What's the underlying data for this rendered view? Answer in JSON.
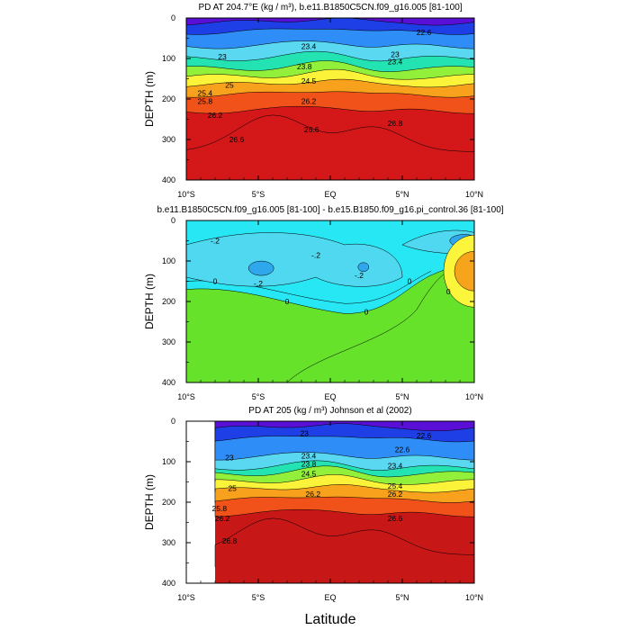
{
  "page": {
    "xlabel": "Latitude"
  },
  "chart_data": [
    {
      "type": "contour",
      "title": "PD AT 204.7°E (kg / m³), b.e11.B1850C5CN.f09_g16.005 [81-100]",
      "ylabel": "DEPTH (m)",
      "x_ticks": [
        "10°S",
        "5°S",
        "EQ",
        "5°N",
        "10°N"
      ],
      "y_ticks": [
        "0",
        "100",
        "200",
        "300",
        "400"
      ],
      "xlim": [
        -10,
        10
      ],
      "ylim": [
        0,
        400
      ],
      "levels": [
        {
          "value": 22.6,
          "color": "#5a0fd6",
          "depth": 12
        },
        {
          "value": 23.0,
          "color": "#1f3fe6",
          "depth": 35
        },
        {
          "value": 23.4,
          "color": "#2f8df7",
          "depth": 70
        },
        {
          "value": 23.8,
          "color": "#5ad8f2",
          "depth": 100
        },
        {
          "value": 24.5,
          "color": "#23e3b2",
          "depth": 125
        },
        {
          "value": 25.0,
          "color": "#92f03a",
          "depth": 145
        },
        {
          "value": 25.4,
          "color": "#fbf33a",
          "depth": 165
        },
        {
          "value": 25.8,
          "color": "#f7a11c",
          "depth": 190
        },
        {
          "value": 26.2,
          "color": "#f1521a",
          "depth": 230
        },
        {
          "value": 26.6,
          "color": "#d4181a",
          "depth": 400
        }
      ],
      "contour_labels": [
        {
          "text": "22.6",
          "lat": 6.5,
          "depth": 35
        },
        {
          "text": "23.4",
          "lat": -1.5,
          "depth": 70
        },
        {
          "text": "23",
          "lat": -7.5,
          "depth": 95
        },
        {
          "text": "23",
          "lat": 4.5,
          "depth": 90
        },
        {
          "text": "23.4",
          "lat": 4.5,
          "depth": 108
        },
        {
          "text": "23.8",
          "lat": -1.8,
          "depth": 120
        },
        {
          "text": "24.5",
          "lat": -1.5,
          "depth": 155
        },
        {
          "text": "25",
          "lat": -7,
          "depth": 165
        },
        {
          "text": "25.4",
          "lat": -8.7,
          "depth": 185
        },
        {
          "text": "25.8",
          "lat": -8.7,
          "depth": 205
        },
        {
          "text": "26.2",
          "lat": -8,
          "depth": 240
        },
        {
          "text": "26.6",
          "lat": -6.5,
          "depth": 300
        },
        {
          "text": "26.2",
          "lat": -1.5,
          "depth": 205
        },
        {
          "text": "26.8",
          "lat": 4.5,
          "depth": 260
        },
        {
          "text": "26.6",
          "lat": -1.3,
          "depth": 275
        }
      ]
    },
    {
      "type": "contour",
      "title": "b.e11.B1850C5CN.f09_g16.005 [81-100] - b.e15.B1850.f09_g16.pi_control.36 [81-100]",
      "ylabel": "DEPTH (m)",
      "x_ticks": [
        "10°S",
        "5°S",
        "EQ",
        "5°N",
        "10°N"
      ],
      "y_ticks": [
        "0",
        "100",
        "200",
        "300",
        "400"
      ],
      "xlim": [
        -10,
        10
      ],
      "ylim": [
        0,
        400
      ],
      "levels": [
        {
          "value": -0.4,
          "color": "#2fa7ec"
        },
        {
          "value": -0.2,
          "color": "#4fd8f0"
        },
        {
          "value": 0.0,
          "color": "#28e7f5"
        },
        {
          "value": 0.1,
          "color": "#2de0a8"
        },
        {
          "value": 0.2,
          "color": "#67e22a"
        },
        {
          "value": 0.4,
          "color": "#fbf53b"
        },
        {
          "value": 0.6,
          "color": "#f7a41d"
        }
      ],
      "contour_labels": [
        {
          "text": "-.2",
          "lat": -8,
          "depth": 50
        },
        {
          "text": "-.2",
          "lat": -1,
          "depth": 85
        },
        {
          "text": "-.2",
          "lat": -5,
          "depth": 155
        },
        {
          "text": "-.2",
          "lat": 2,
          "depth": 135
        },
        {
          "text": "0",
          "lat": 5.5,
          "depth": 150
        },
        {
          "text": "0",
          "lat": -8,
          "depth": 150
        },
        {
          "text": "0",
          "lat": -3,
          "depth": 200
        },
        {
          "text": "0",
          "lat": 2.5,
          "depth": 225
        },
        {
          "text": "0",
          "lat": 8.2,
          "depth": 175
        }
      ]
    },
    {
      "type": "contour",
      "title": "PD AT 205 (kg / m³) Johnson et al (2002)",
      "ylabel": "DEPTH (m)",
      "x_ticks": [
        "10°S",
        "5°S",
        "EQ",
        "5°N",
        "10°N"
      ],
      "y_ticks": [
        "0",
        "100",
        "200",
        "300",
        "400"
      ],
      "xlim": [
        -10,
        10
      ],
      "ylim": [
        0,
        400
      ],
      "data_start_lat": -8,
      "levels": [
        {
          "value": 22.6,
          "color": "#5a0fd6",
          "depth": 18
        },
        {
          "value": 23.0,
          "color": "#1f3fe6",
          "depth": 45
        },
        {
          "value": 23.4,
          "color": "#2f8df7",
          "depth": 90
        },
        {
          "value": 23.8,
          "color": "#5ad8f2",
          "depth": 115
        },
        {
          "value": 24.5,
          "color": "#23e3b2",
          "depth": 130
        },
        {
          "value": 25.0,
          "color": "#92f03a",
          "depth": 150
        },
        {
          "value": 25.4,
          "color": "#fbf33a",
          "depth": 170
        },
        {
          "value": 25.8,
          "color": "#f7a11c",
          "depth": 195
        },
        {
          "value": 26.2,
          "color": "#f1521a",
          "depth": 230
        },
        {
          "value": 26.6,
          "color": "#c81717",
          "depth": 400
        }
      ],
      "contour_labels": [
        {
          "text": "23",
          "lat": -1.8,
          "depth": 30
        },
        {
          "text": "22.6",
          "lat": 6.5,
          "depth": 35
        },
        {
          "text": "23",
          "lat": -7,
          "depth": 90
        },
        {
          "text": "22.6",
          "lat": 5,
          "depth": 70
        },
        {
          "text": "23.4",
          "lat": -1.5,
          "depth": 85
        },
        {
          "text": "23.8",
          "lat": -1.5,
          "depth": 105
        },
        {
          "text": "24.5",
          "lat": -1.5,
          "depth": 130
        },
        {
          "text": "25",
          "lat": -6.8,
          "depth": 165
        },
        {
          "text": "25.8",
          "lat": -7.7,
          "depth": 215
        },
        {
          "text": "26.2",
          "lat": -7.5,
          "depth": 240
        },
        {
          "text": "26.2",
          "lat": -1.2,
          "depth": 180
        },
        {
          "text": "26.2",
          "lat": 4.5,
          "depth": 180
        },
        {
          "text": "26.6",
          "lat": 4.5,
          "depth": 240
        },
        {
          "text": "26.8",
          "lat": -7,
          "depth": 295
        },
        {
          "text": "23.4",
          "lat": 4.5,
          "depth": 110
        },
        {
          "text": "25.4",
          "lat": 4.5,
          "depth": 160
        }
      ]
    }
  ]
}
